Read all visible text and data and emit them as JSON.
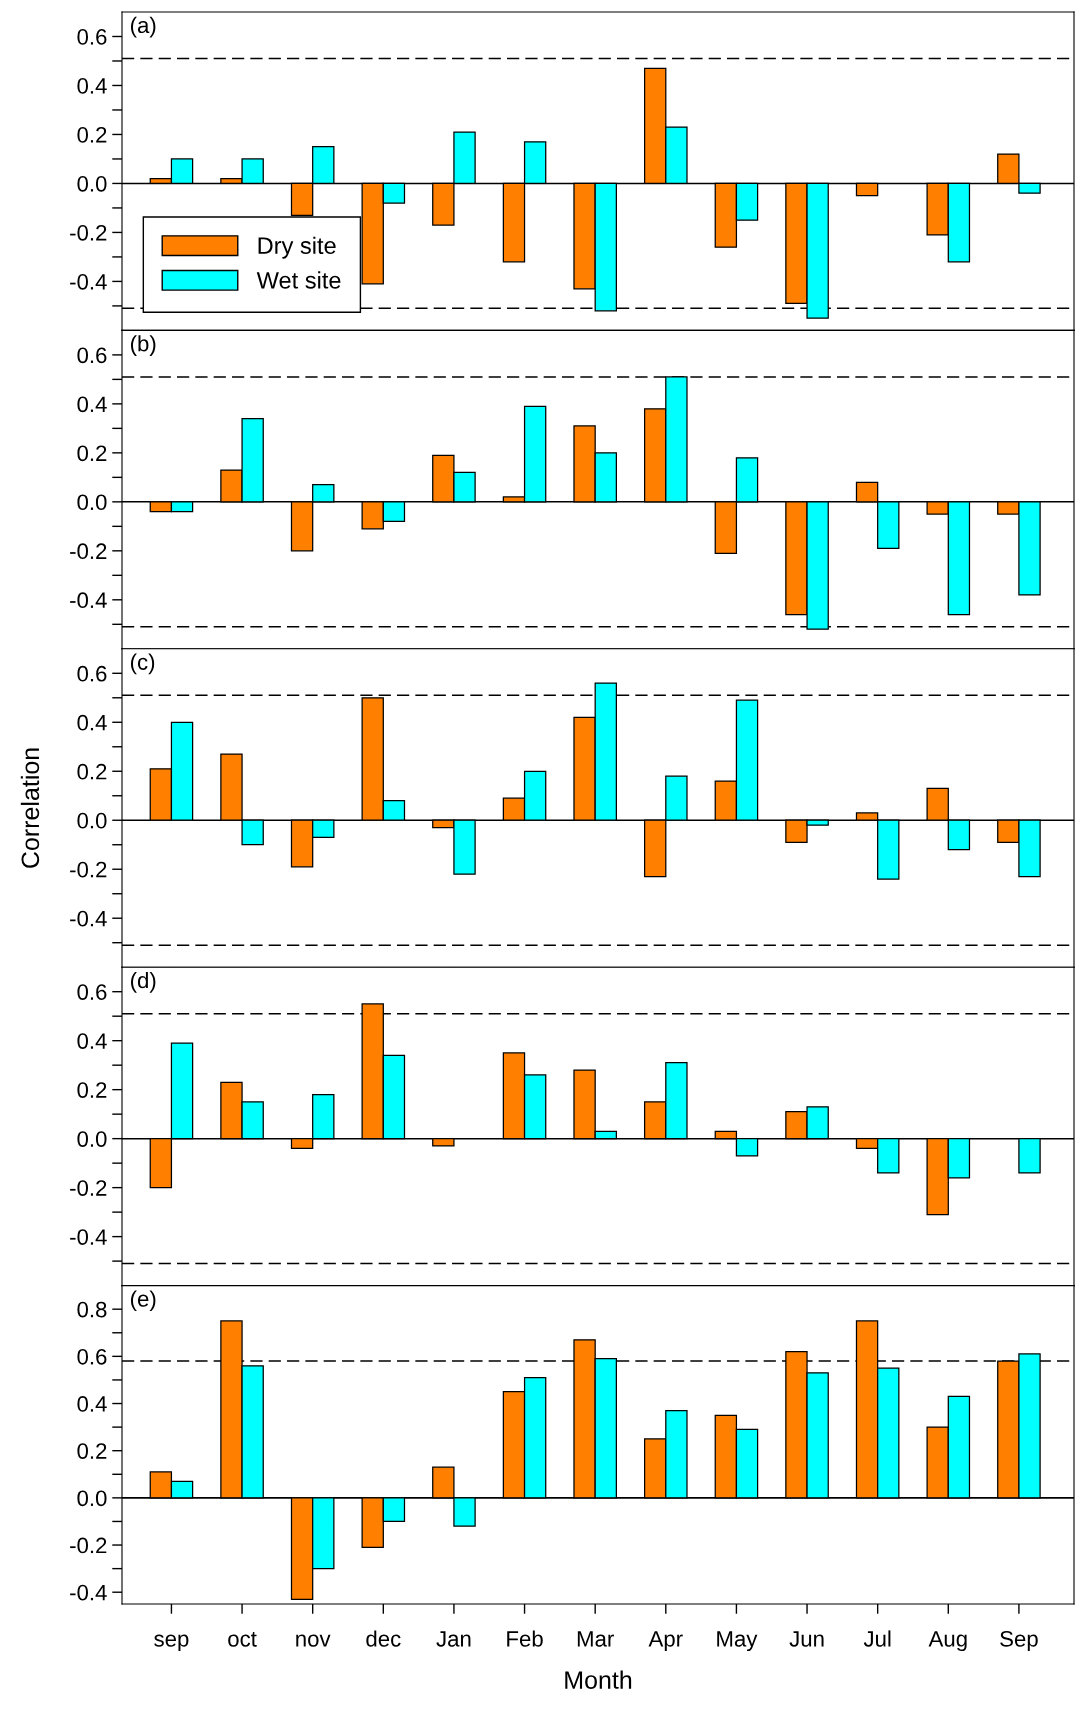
{
  "chart_data": [
    {
      "type": "bar",
      "categories": [
        null,
        null,
        null,
        null,
        null,
        null,
        null,
        null,
        null,
        null,
        null,
        null,
        null
      ],
      "annotations": [
        "(a)"
      ],
      "legend": "bottom left",
      "tick_labels": "y",
      "ylim": [
        -0.6,
        0.7
      ],
      "yticks": [
        {
          "value": -0.5,
          "label": null
        },
        -0.4,
        {
          "value": -0.3,
          "label": null
        },
        -0.2,
        {
          "value": -0.1,
          "label": null
        },
        {
          "value": 0,
          "label": "0.0"
        },
        {
          "value": 0.1,
          "label": null
        },
        0.2,
        {
          "value": 0.3,
          "label": null
        },
        0.4,
        {
          "value": 0.5,
          "label": null
        },
        0.6
      ],
      "ref_lines": [
        {
          "axis": "y",
          "value": 0,
          "color": "#000000",
          "line_style": "solid"
        },
        {
          "axis": "y",
          "value": 0.51,
          "color": "#000000",
          "line_style": "dashed"
        },
        {
          "axis": "y",
          "value": -0.51,
          "color": "#000000",
          "line_style": "dashed"
        }
      ],
      "series": [
        {
          "name": "Dry site",
          "color": "#ff8000",
          "values": [
            0.02,
            0.02,
            -0.13,
            -0.41,
            -0.17,
            -0.32,
            -0.43,
            0.47,
            -0.26,
            -0.49,
            -0.05,
            -0.21,
            0.12
          ]
        },
        {
          "name": "Wet site",
          "color": "#00ffff",
          "values": [
            0.1,
            0.1,
            0.15,
            -0.08,
            0.21,
            0.17,
            -0.52,
            0.23,
            -0.15,
            -0.55,
            null,
            -0.32,
            -0.04
          ]
        }
      ]
    },
    {
      "type": "bar",
      "categories": [
        null,
        null,
        null,
        null,
        null,
        null,
        null,
        null,
        null,
        null,
        null,
        null,
        null
      ],
      "annotations": [
        "(b)"
      ],
      "tick_labels": "y",
      "ylim": [
        -0.6,
        0.7
      ],
      "yticks": [
        {
          "value": -0.5,
          "label": null
        },
        -0.4,
        {
          "value": -0.3,
          "label": null
        },
        -0.2,
        {
          "value": -0.1,
          "label": null
        },
        {
          "value": 0,
          "label": "0.0"
        },
        {
          "value": 0.1,
          "label": null
        },
        0.2,
        {
          "value": 0.3,
          "label": null
        },
        0.4,
        {
          "value": 0.5,
          "label": null
        },
        0.6
      ],
      "ref_lines": [
        {
          "axis": "y",
          "value": 0,
          "color": "#000000",
          "line_style": "solid"
        },
        {
          "axis": "y",
          "value": 0.51,
          "color": "#000000",
          "line_style": "dashed"
        },
        {
          "axis": "y",
          "value": -0.51,
          "color": "#000000",
          "line_style": "dashed"
        }
      ],
      "series": [
        {
          "color": "#ff8000",
          "values": [
            -0.04,
            0.13,
            -0.2,
            -0.11,
            0.19,
            0.02,
            0.31,
            0.38,
            -0.21,
            -0.46,
            0.08,
            -0.05,
            -0.05
          ]
        },
        {
          "color": "#00ffff",
          "values": [
            -0.04,
            0.34,
            0.07,
            -0.08,
            0.12,
            0.39,
            0.2,
            0.51,
            0.18,
            -0.52,
            -0.19,
            -0.46,
            -0.38
          ]
        }
      ]
    },
    {
      "type": "bar",
      "categories": [
        null,
        null,
        null,
        null,
        null,
        null,
        null,
        null,
        null,
        null,
        null,
        null,
        null
      ],
      "ylabel": "Correlation",
      "annotations": [
        "(c)"
      ],
      "tick_labels": "y",
      "ylim": [
        -0.6,
        0.7
      ],
      "yticks": [
        {
          "value": -0.5,
          "label": null
        },
        -0.4,
        {
          "value": -0.3,
          "label": null
        },
        -0.2,
        {
          "value": -0.1,
          "label": null
        },
        {
          "value": 0,
          "label": "0.0"
        },
        {
          "value": 0.1,
          "label": null
        },
        0.2,
        {
          "value": 0.3,
          "label": null
        },
        0.4,
        {
          "value": 0.5,
          "label": null
        },
        0.6
      ],
      "ref_lines": [
        {
          "axis": "y",
          "value": 0,
          "color": "#000000",
          "line_style": "solid"
        },
        {
          "axis": "y",
          "value": 0.51,
          "color": "#000000",
          "line_style": "dashed"
        },
        {
          "axis": "y",
          "value": -0.51,
          "color": "#000000",
          "line_style": "dashed"
        }
      ],
      "series": [
        {
          "color": "#ff8000",
          "values": [
            0.21,
            0.27,
            -0.19,
            0.5,
            -0.03,
            0.09,
            0.42,
            -0.23,
            0.16,
            -0.09,
            0.03,
            0.13,
            -0.09
          ]
        },
        {
          "color": "#00ffff",
          "values": [
            0.4,
            -0.1,
            -0.07,
            0.08,
            -0.22,
            0.2,
            0.56,
            0.18,
            0.49,
            -0.02,
            -0.24,
            -0.12,
            -0.23
          ]
        }
      ]
    },
    {
      "type": "bar",
      "categories": [
        null,
        null,
        null,
        null,
        null,
        null,
        null,
        null,
        null,
        null,
        null,
        null,
        null
      ],
      "annotations": [
        "(d)"
      ],
      "tick_labels": "y",
      "ylim": [
        -0.6,
        0.7
      ],
      "yticks": [
        {
          "value": -0.5,
          "label": null
        },
        -0.4,
        {
          "value": -0.3,
          "label": null
        },
        -0.2,
        {
          "value": -0.1,
          "label": null
        },
        {
          "value": 0,
          "label": "0.0"
        },
        {
          "value": 0.1,
          "label": null
        },
        0.2,
        {
          "value": 0.3,
          "label": null
        },
        0.4,
        {
          "value": 0.5,
          "label": null
        },
        0.6
      ],
      "ref_lines": [
        {
          "axis": "y",
          "value": 0,
          "color": "#000000",
          "line_style": "solid"
        },
        {
          "axis": "y",
          "value": 0.51,
          "color": "#000000",
          "line_style": "dashed"
        },
        {
          "axis": "y",
          "value": -0.51,
          "color": "#000000",
          "line_style": "dashed"
        }
      ],
      "series": [
        {
          "color": "#ff8000",
          "values": [
            -0.2,
            0.23,
            -0.04,
            0.55,
            -0.03,
            0.35,
            0.28,
            0.15,
            0.03,
            0.11,
            -0.04,
            -0.31,
            null
          ]
        },
        {
          "color": "#00ffff",
          "values": [
            0.39,
            0.15,
            0.18,
            0.34,
            null,
            0.26,
            0.03,
            0.31,
            -0.07,
            0.13,
            -0.14,
            -0.16,
            -0.14
          ]
        }
      ]
    },
    {
      "type": "bar",
      "categories": [
        "sep",
        "oct",
        "nov",
        "dec",
        "Jan",
        "Feb",
        "Mar",
        "Apr",
        "May",
        "Jun",
        "Jul",
        "Aug",
        "Sep"
      ],
      "xlabel": "Month",
      "annotations": [
        "(e)"
      ],
      "ylim": [
        -0.45,
        0.9
      ],
      "yticks": [
        -0.4,
        {
          "value": -0.3,
          "label": null
        },
        -0.2,
        {
          "value": -0.1,
          "label": null
        },
        {
          "value": 0,
          "label": "0.0"
        },
        {
          "value": 0.1,
          "label": null
        },
        0.2,
        {
          "value": 0.3,
          "label": null
        },
        0.4,
        {
          "value": 0.5,
          "label": null
        },
        0.6,
        {
          "value": 0.7,
          "label": null
        },
        0.8
      ],
      "ref_lines": [
        {
          "axis": "y",
          "value": 0,
          "color": "#000000",
          "line_style": "solid"
        },
        {
          "axis": "y",
          "value": 0.58,
          "color": "#000000",
          "line_style": "dashed"
        }
      ],
      "series": [
        {
          "color": "#ff8000",
          "values": [
            0.11,
            0.75,
            -0.43,
            -0.21,
            0.13,
            0.45,
            0.67,
            0.25,
            0.35,
            0.62,
            0.75,
            0.3,
            0.58
          ]
        },
        {
          "color": "#00ffff",
          "values": [
            0.07,
            0.56,
            -0.3,
            -0.1,
            -0.12,
            0.51,
            0.59,
            0.37,
            0.29,
            0.53,
            0.55,
            0.43,
            0.61
          ]
        }
      ]
    }
  ]
}
